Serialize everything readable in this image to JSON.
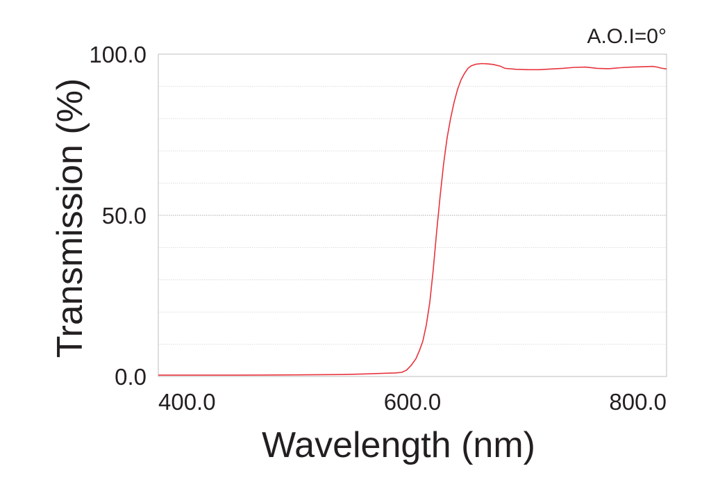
{
  "chart_data": {
    "type": "line",
    "annotation": "A.O.I=0°",
    "xlabel": "Wavelength (nm)",
    "ylabel": "Transmission (%)",
    "xlim": [
      380,
      820
    ],
    "ylim": [
      0,
      100
    ],
    "x_ticks": [
      400,
      600,
      800
    ],
    "x_tick_labels": [
      "400.0",
      "600.0",
      "800.0"
    ],
    "y_ticks": [
      0,
      50,
      100
    ],
    "y_tick_labels": [
      "0.0",
      "50.0",
      "100.0"
    ],
    "y_gridlines": [
      10,
      20,
      30,
      40,
      50,
      60,
      70,
      80,
      90
    ],
    "grid": true,
    "line_color": "#e8323c",
    "series": [
      {
        "x": [
          380,
          450,
          500,
          540,
          560,
          575,
          585,
          591,
          595,
          599,
          603,
          606,
          609,
          612,
          615,
          618,
          621,
          624,
          627,
          630,
          633,
          636,
          639,
          642,
          645,
          648,
          651,
          655,
          660,
          665,
          670,
          676,
          680,
          690,
          700,
          710,
          720,
          730,
          740,
          750,
          760,
          770,
          780,
          790,
          800,
          808,
          812,
          815,
          820
        ],
        "y": [
          0.4,
          0.4,
          0.5,
          0.6,
          0.8,
          1.0,
          1.1,
          1.3,
          2.0,
          3.5,
          5.5,
          8,
          11,
          16,
          23,
          33,
          45,
          56,
          66,
          74,
          80,
          85,
          89,
          92,
          94,
          95.6,
          96.4,
          96.9,
          97.1,
          97.0,
          96.8,
          96.3,
          95.6,
          95.3,
          95.2,
          95.2,
          95.4,
          95.6,
          95.9,
          96.0,
          95.6,
          95.5,
          95.8,
          96.0,
          96.1,
          96.2,
          96.0,
          95.7,
          95.4
        ]
      }
    ]
  }
}
